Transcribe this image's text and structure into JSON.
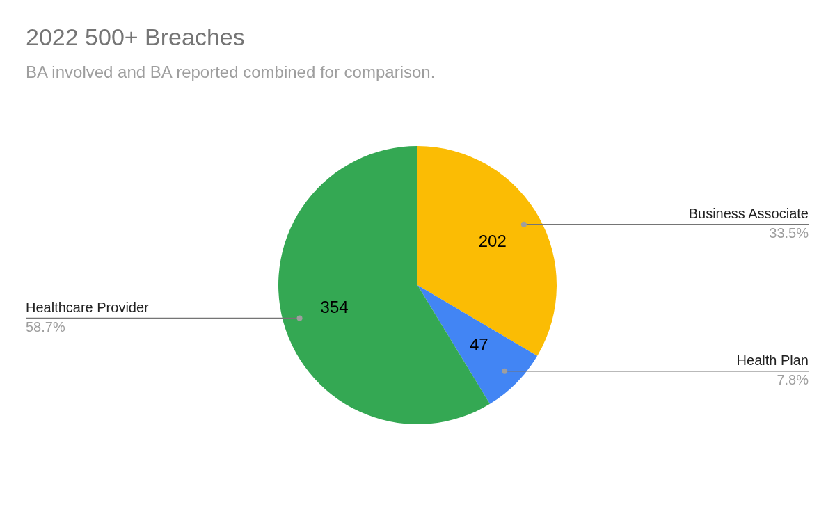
{
  "chart_data": {
    "type": "pie",
    "title": "2022 500+ Breaches",
    "subtitle": "BA involved and BA reported combined for comparison.",
    "categories": [
      "Business Associate",
      "Health Plan",
      "Healthcare Provider"
    ],
    "values": [
      202,
      47,
      354
    ],
    "colors": [
      "#fbbc04",
      "#4285f4",
      "#34a853"
    ],
    "data_labels": true,
    "legend": false,
    "annotations": [
      {
        "text": "33.5%",
        "x": "Business Associate"
      },
      {
        "text": "7.8%",
        "x": "Health Plan"
      },
      {
        "text": "58.7%",
        "x": "Healthcare Provider"
      }
    ]
  }
}
